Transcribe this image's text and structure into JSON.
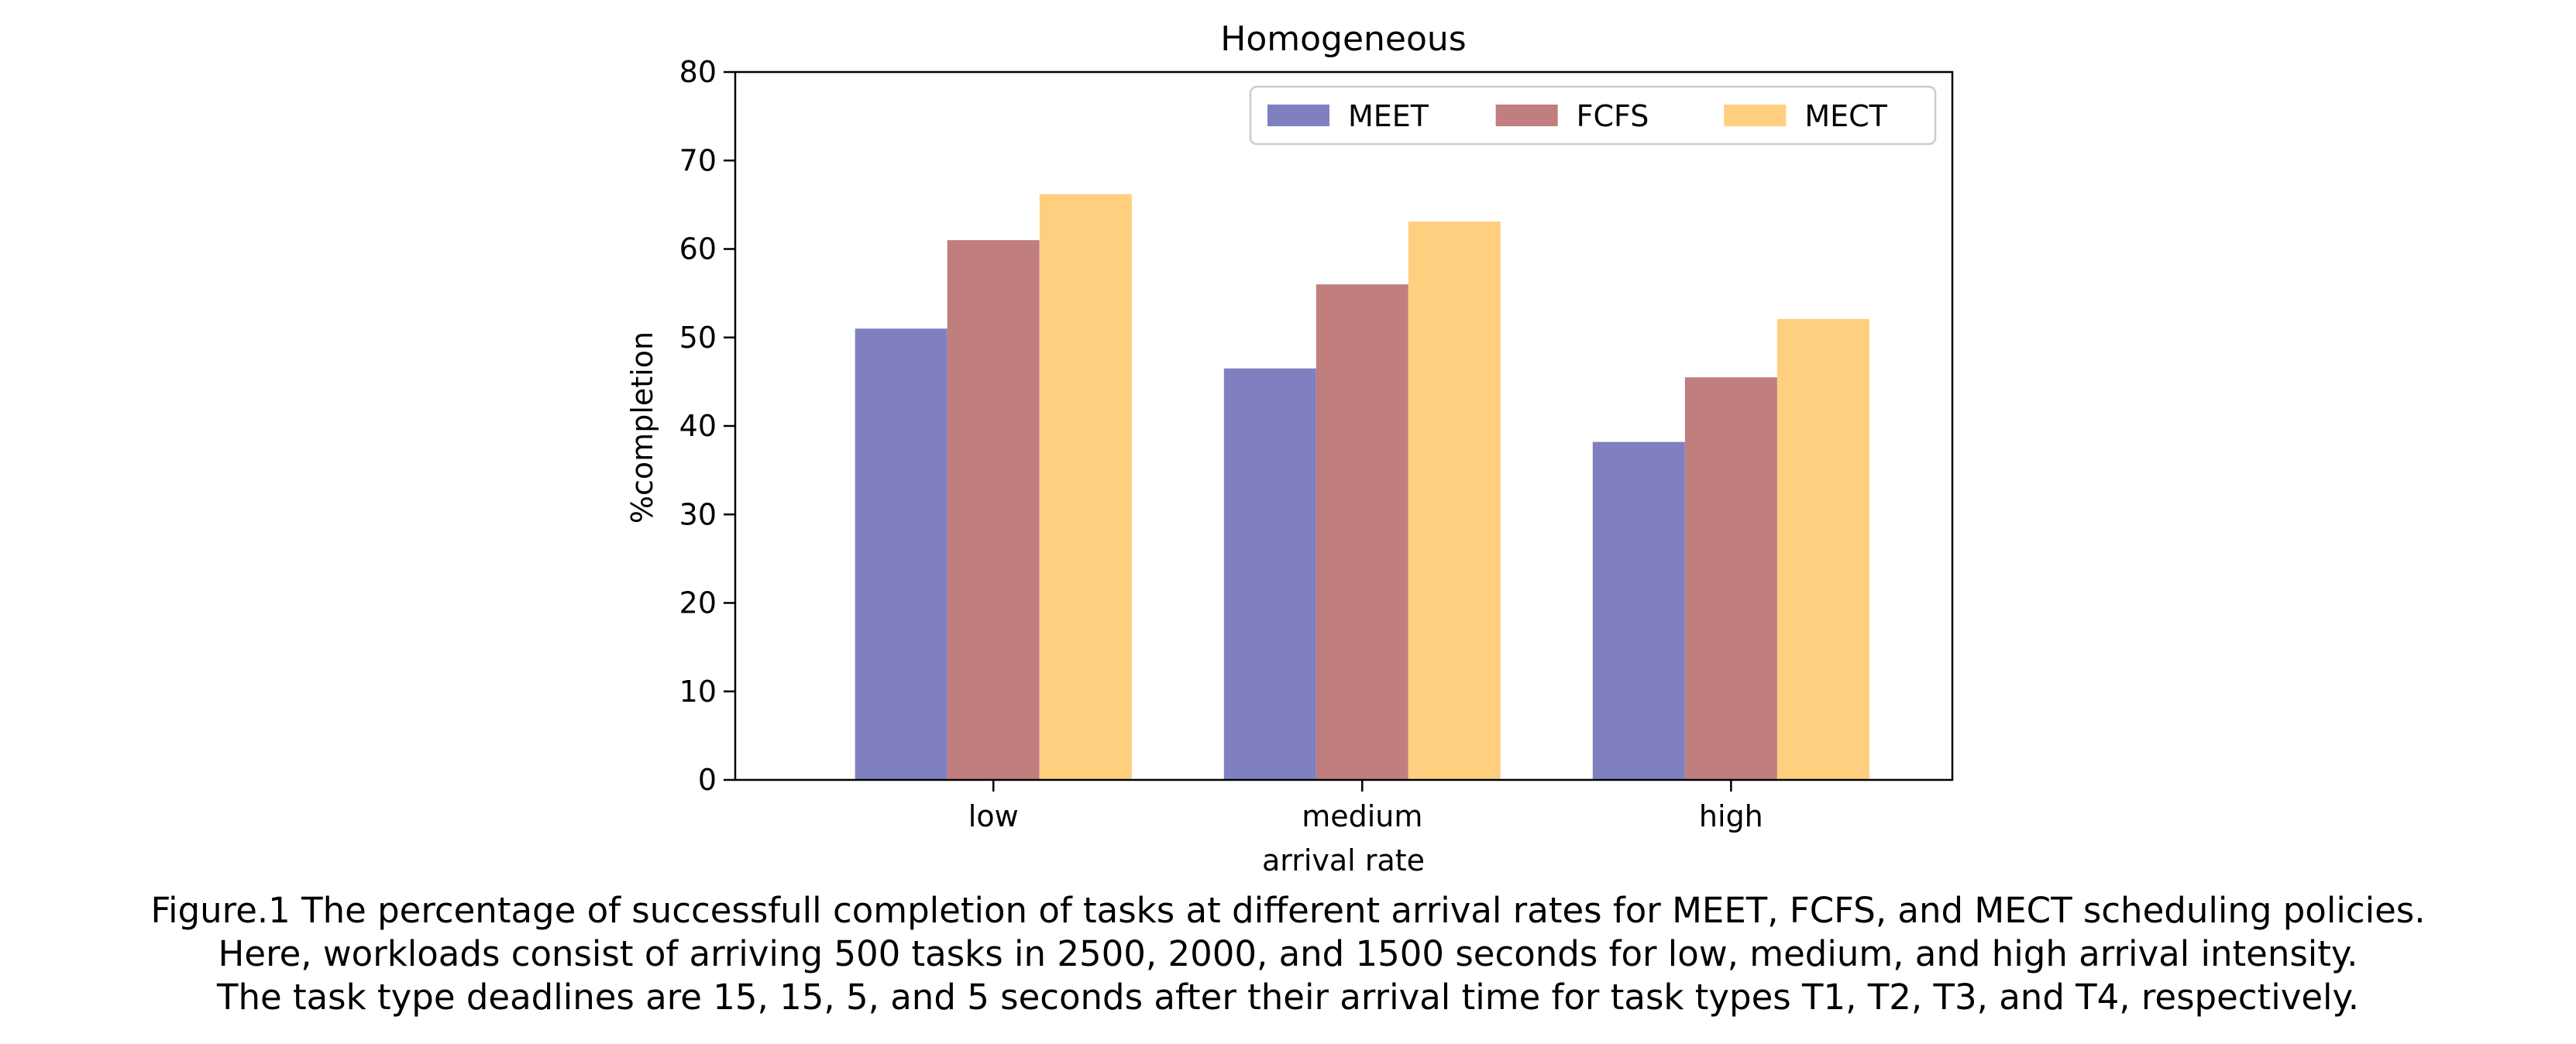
{
  "chart_data": {
    "type": "bar",
    "title": "Homogeneous",
    "xlabel": "arrival rate",
    "ylabel": "%completion",
    "categories": [
      "low",
      "medium",
      "high"
    ],
    "series": [
      {
        "name": "MEET",
        "values": [
          51,
          46.5,
          38.2
        ],
        "color": "#8080c0"
      },
      {
        "name": "FCFS",
        "values": [
          61,
          56,
          45.5
        ],
        "color": "#c07e7e"
      },
      {
        "name": "MECT",
        "values": [
          66.2,
          63.1,
          52.1
        ],
        "color": "#ffcf80"
      }
    ],
    "ylim": [
      0,
      80
    ],
    "yticks": [
      0,
      10,
      20,
      30,
      40,
      50,
      60,
      70,
      80
    ],
    "grid": false,
    "legend_position": "top-right"
  },
  "caption": {
    "lines": [
      "Figure.1 The percentage of successfull completion of tasks at different arrival rates for MEET, FCFS, and MECT scheduling policies.",
      "Here, workloads consist of arriving 500 tasks in 2500, 2000, and 1500 seconds for low, medium, and high arrival intensity.",
      "The task type deadlines are 15, 15, 5, and 5 seconds after their arrival time for task types T1, T2, T3, and T4, respectively."
    ]
  }
}
